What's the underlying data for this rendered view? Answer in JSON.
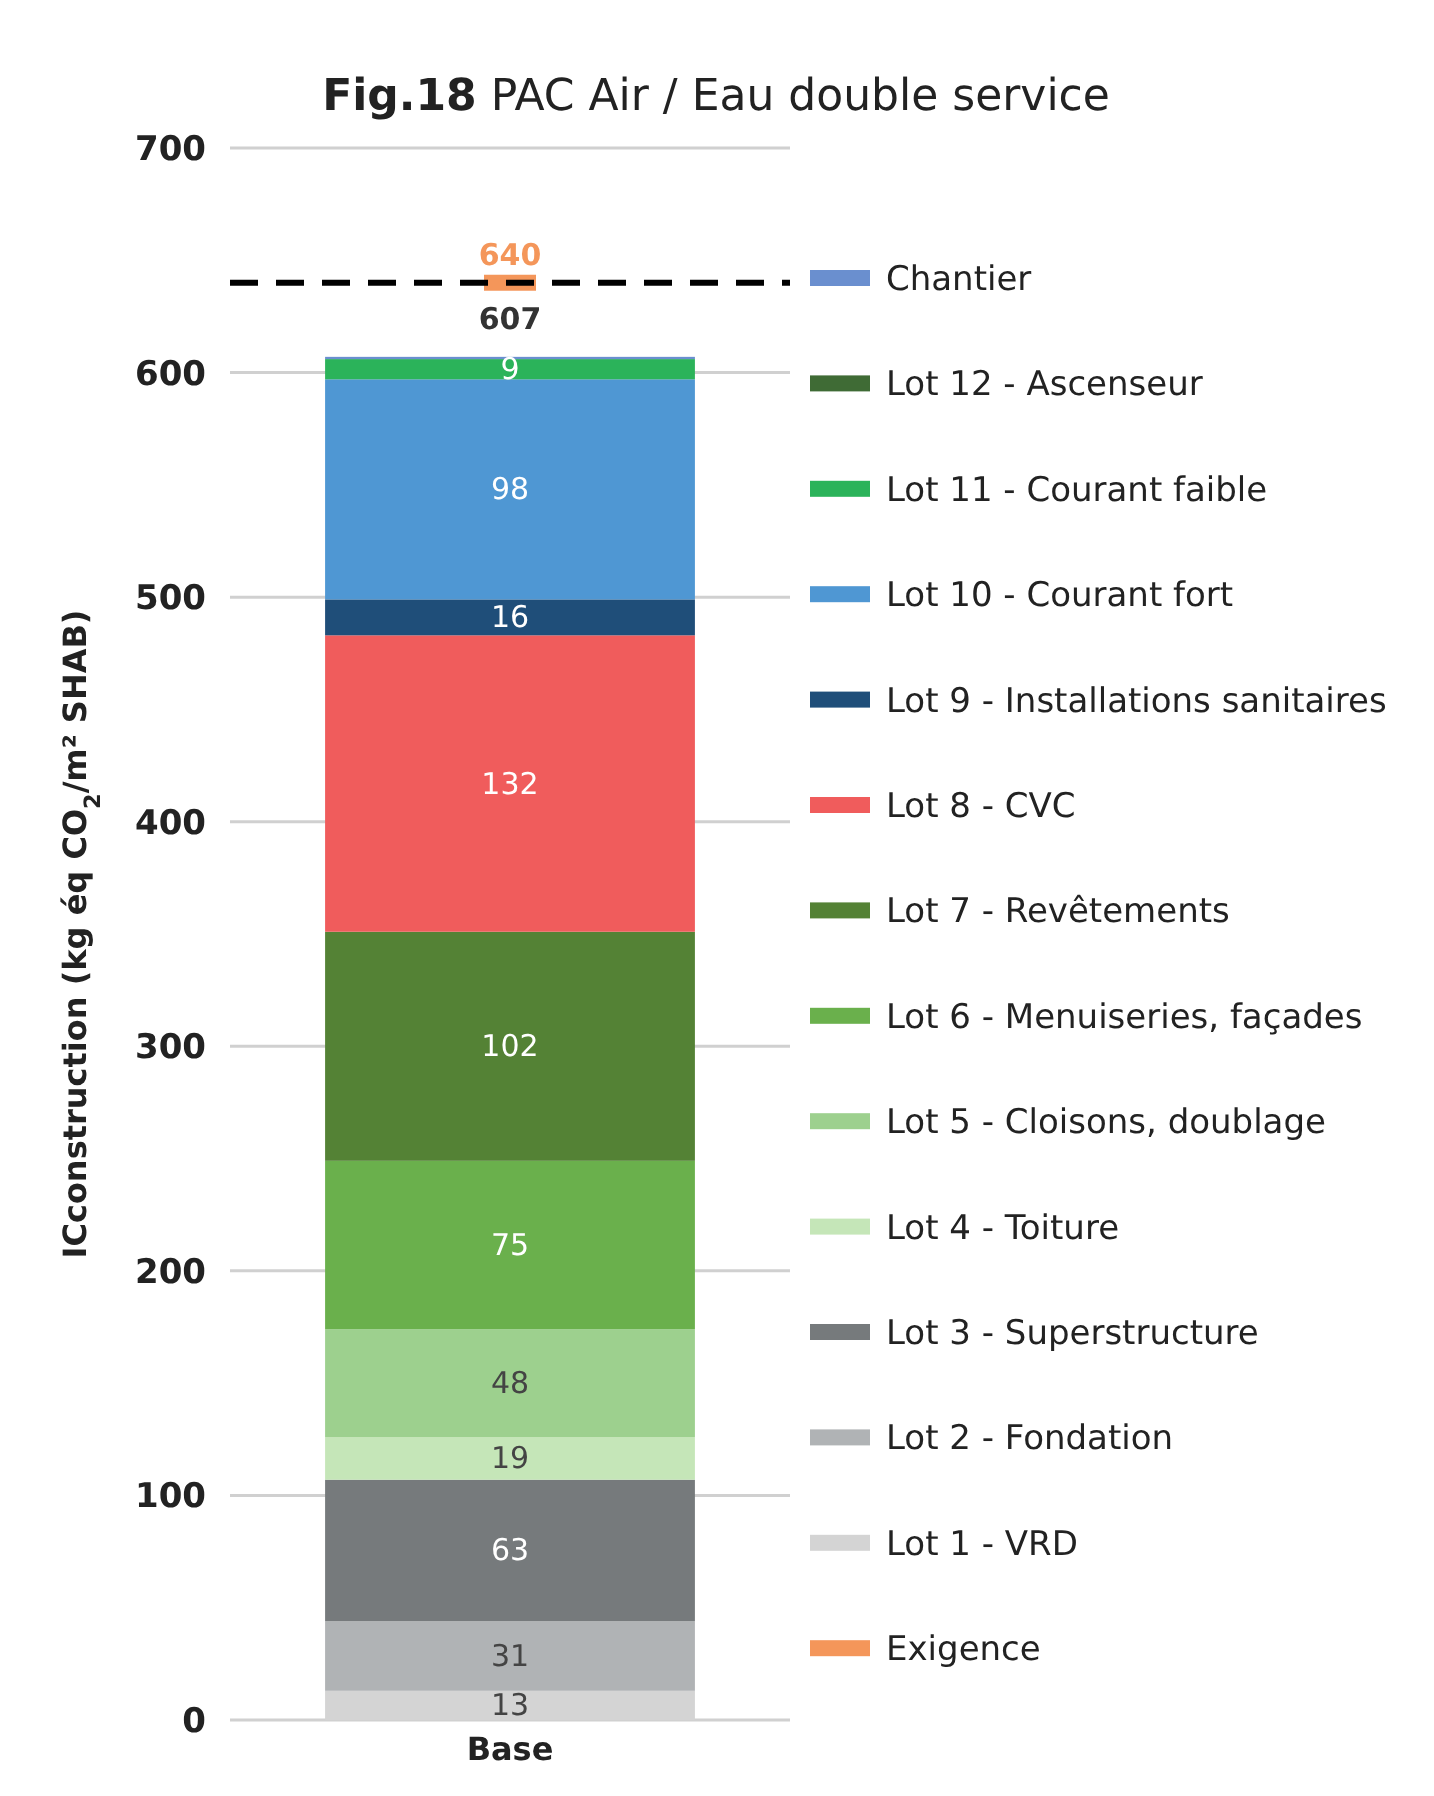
{
  "chart_data": {
    "type": "bar",
    "title": "Fig.18 PAC Air / Eau double service",
    "ylabel": "ICconstruction (kg éq CO$_{2}$/m² SHAB)",
    "categories": [
      "Base"
    ],
    "stacked": true,
    "ylim": [
      0,
      700
    ],
    "yticks": [
      0,
      100,
      200,
      300,
      400,
      500,
      600,
      700
    ],
    "grid": "y",
    "legend": "right",
    "series": [
      {
        "name": "Lot 1 - VRD",
        "color": "#d4d4d4",
        "values": [
          13
        ],
        "value_labels": [
          "13"
        ]
      },
      {
        "name": "Lot 2 - Fondation",
        "color": "#b0b3b5",
        "values": [
          31
        ],
        "value_labels": [
          "31"
        ]
      },
      {
        "name": "Lot 3 - Superstructure",
        "color": "#767a7c",
        "values": [
          63
        ],
        "value_labels": [
          "63"
        ]
      },
      {
        "name": "Lot 4 - Toiture",
        "color": "#c5e6b8",
        "values": [
          19
        ],
        "value_labels": [
          "19"
        ]
      },
      {
        "name": "Lot 5 - Cloisons, doublage",
        "color": "#9dd08e",
        "values": [
          48
        ],
        "value_labels": [
          "48"
        ]
      },
      {
        "name": "Lot 6 - Menuiseries, façades",
        "color": "#6ab04c",
        "values": [
          75
        ],
        "value_labels": [
          "75"
        ]
      },
      {
        "name": "Lot 7 - Revêtements",
        "color": "#548235",
        "values": [
          102
        ],
        "value_labels": [
          "102"
        ]
      },
      {
        "name": "Lot 8 - CVC",
        "color": "#f05c5c",
        "values": [
          132
        ],
        "value_labels": [
          "132"
        ]
      },
      {
        "name": "Lot 9 - Installations sanitaires",
        "color": "#1f4e79",
        "values": [
          16
        ],
        "value_labels": [
          "16"
        ]
      },
      {
        "name": "Lot 10 - Courant fort",
        "color": "#4f97d3",
        "values": [
          98
        ],
        "value_labels": [
          "98"
        ]
      },
      {
        "name": "Lot 11 - Courant faible",
        "color": "#2bb35a",
        "values": [
          9
        ],
        "value_labels": [
          "9"
        ]
      },
      {
        "name": "Lot 12 - Ascenseur",
        "color": "#3f6b35",
        "values": [
          null
        ]
      },
      {
        "name": "Chantier",
        "color": "#6a8fcf",
        "values": [
          1
        ]
      },
      {
        "name": "Exigence",
        "type": "scatter",
        "marker": "square",
        "color": "#f4965a",
        "values": [
          640
        ],
        "value_labels": [
          "640"
        ]
      }
    ],
    "totals": [
      "607"
    ],
    "ref_lines": [
      {
        "axis": "y",
        "value": 640,
        "color": "#000000",
        "line_style": "dashed"
      }
    ]
  }
}
